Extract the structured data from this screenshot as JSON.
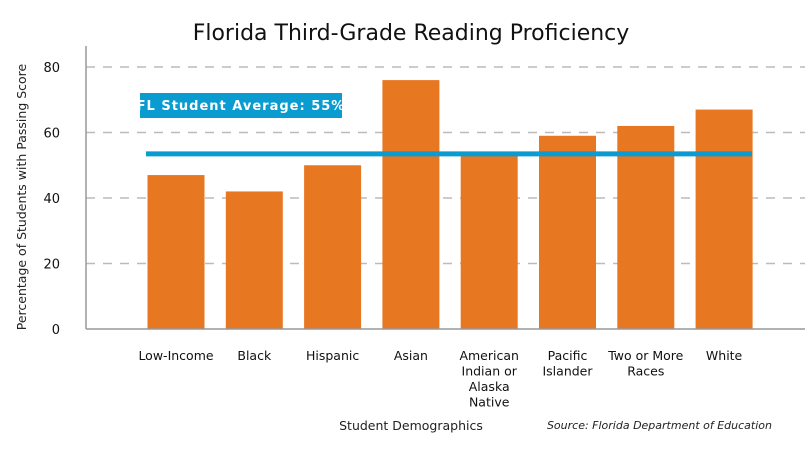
{
  "chart_data": {
    "type": "bar",
    "title": "Florida Third-Grade Reading Proficiency",
    "xlabel": "Student Demographics",
    "ylabel": "Percentage of Students with Passing Score",
    "source": "Source: Florida Department of Education",
    "categories": [
      [
        "Low-Income"
      ],
      [
        "Black"
      ],
      [
        "Hispanic"
      ],
      [
        "Asian"
      ],
      [
        "American",
        "Indian or",
        "Alaska",
        "Native"
      ],
      [
        "Pacific",
        "Islander"
      ],
      [
        "Two or More",
        "Races"
      ],
      [
        "White"
      ]
    ],
    "values": [
      47,
      42,
      50,
      76,
      53,
      59,
      62,
      67
    ],
    "ylim": [
      0,
      80
    ],
    "yticks": [
      0,
      20,
      40,
      60,
      80
    ],
    "grid": true,
    "reference_line": {
      "label": "FL Student Average: 55%",
      "value": 55
    },
    "colors": {
      "bar": "#E87722",
      "average": "#0A9BD0",
      "grid": "#BBBBBB"
    }
  }
}
